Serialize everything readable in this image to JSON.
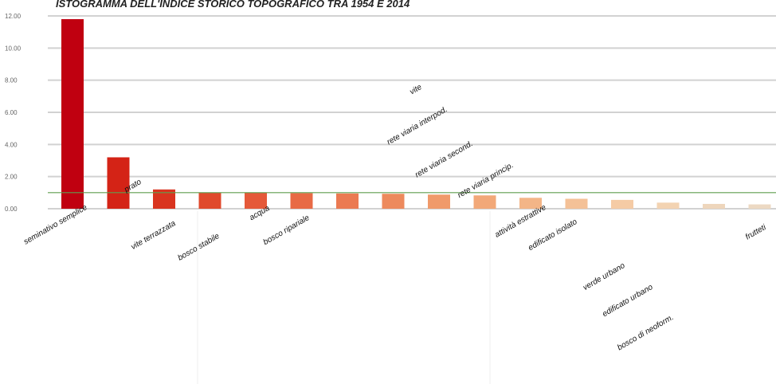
{
  "chart_data": {
    "type": "bar",
    "title": "ISTOGRAMMA DELL'INDICE STORICO TOPOGRAFICO TRA 1954 E 2014",
    "xlabel": "",
    "ylabel": "",
    "ylim": [
      0,
      12
    ],
    "grid": true,
    "y_ticks": [
      "0.00",
      "2.00",
      "4.00",
      "6.00",
      "8.00",
      "10.00",
      "12.00"
    ],
    "reference_line": 1.0,
    "categories": [
      "seminativo semplice",
      "prato",
      "vite terrazzata",
      "bosco stabile",
      "acqua",
      "bosco ripariale",
      "vite",
      "rete viaria interpod.",
      "rete viaria second.",
      "rete viaria princip.",
      "attività estrattive",
      "edificato isolato",
      "verde urbano",
      "edificato urbano",
      "bosco di neoform.",
      "frutteti"
    ],
    "values": [
      11.8,
      3.2,
      1.2,
      1.0,
      1.0,
      0.97,
      0.95,
      0.93,
      0.88,
      0.83,
      0.68,
      0.62,
      0.55,
      0.38,
      0.3,
      0.27
    ],
    "colors": [
      "#c00010",
      "#d42316",
      "#d9341f",
      "#e04a2c",
      "#e55939",
      "#e86a45",
      "#eb7a52",
      "#ed8a5d",
      "#f09a6a",
      "#f2a878",
      "#f3b587",
      "#f4c197",
      "#f5cba5",
      "#f3d3b2",
      "#eed6bc",
      "#ecd9c3"
    ]
  }
}
